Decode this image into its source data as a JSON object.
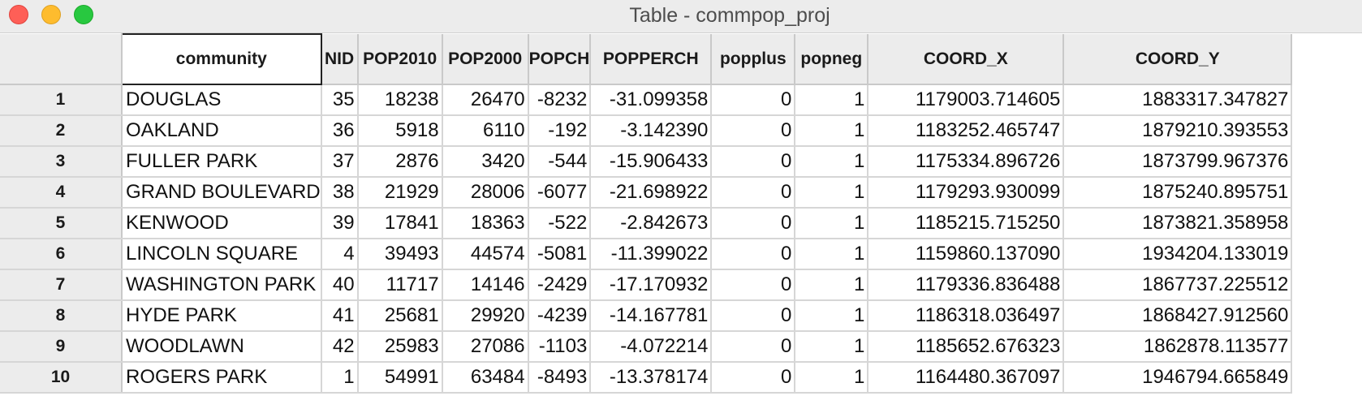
{
  "window": {
    "title": "Table - commpop_proj"
  },
  "table": {
    "columns": [
      "community",
      "NID",
      "POP2010",
      "POP2000",
      "POPCH",
      "POPPERCH",
      "popplus",
      "popneg",
      "COORD_X",
      "COORD_Y"
    ],
    "column_header_display": [
      "community",
      "NID",
      "POP2010",
      "POP2000",
      "POPCH",
      "POPPERCH",
      "popplus",
      "popneg",
      "COORD_X",
      "COORD_Y"
    ],
    "rows": [
      {
        "index": "1",
        "cells": [
          "DOUGLAS",
          "35",
          "18238",
          "26470",
          "-8232",
          "-31.099358",
          "0",
          "1",
          "1179003.714605",
          "1883317.347827"
        ]
      },
      {
        "index": "2",
        "cells": [
          "OAKLAND",
          "36",
          "5918",
          "6110",
          "-192",
          "-3.142390",
          "0",
          "1",
          "1183252.465747",
          "1879210.393553"
        ]
      },
      {
        "index": "3",
        "cells": [
          "FULLER PARK",
          "37",
          "2876",
          "3420",
          "-544",
          "-15.906433",
          "0",
          "1",
          "1175334.896726",
          "1873799.967376"
        ]
      },
      {
        "index": "4",
        "cells": [
          "GRAND BOULEVARD",
          "38",
          "21929",
          "28006",
          "-6077",
          "-21.698922",
          "0",
          "1",
          "1179293.930099",
          "1875240.895751"
        ]
      },
      {
        "index": "5",
        "cells": [
          "KENWOOD",
          "39",
          "17841",
          "18363",
          "-522",
          "-2.842673",
          "0",
          "1",
          "1185215.715250",
          "1873821.358958"
        ]
      },
      {
        "index": "6",
        "cells": [
          "LINCOLN SQUARE",
          "4",
          "39493",
          "44574",
          "-5081",
          "-11.399022",
          "0",
          "1",
          "1159860.137090",
          "1934204.133019"
        ]
      },
      {
        "index": "7",
        "cells": [
          "WASHINGTON PARK",
          "40",
          "11717",
          "14146",
          "-2429",
          "-17.170932",
          "0",
          "1",
          "1179336.836488",
          "1867737.225512"
        ]
      },
      {
        "index": "8",
        "cells": [
          "HYDE PARK",
          "41",
          "25681",
          "29920",
          "-4239",
          "-14.167781",
          "0",
          "1",
          "1186318.036497",
          "1868427.912560"
        ]
      },
      {
        "index": "9",
        "cells": [
          "WOODLAWN",
          "42",
          "25983",
          "27086",
          "-1103",
          "-4.072214",
          "0",
          "1",
          "1185652.676323",
          "1862878.113577"
        ]
      },
      {
        "index": "10",
        "cells": [
          "ROGERS PARK",
          "1",
          "54991",
          "63484",
          "-8493",
          "-13.378174",
          "0",
          "1",
          "1164480.367097",
          "1946794.665849"
        ]
      }
    ]
  },
  "colors": {
    "close": "#fe5f57",
    "minimize": "#febc2e",
    "maximize": "#28c840",
    "header_bg": "#ececec",
    "grid_line": "#d6d6d6"
  }
}
